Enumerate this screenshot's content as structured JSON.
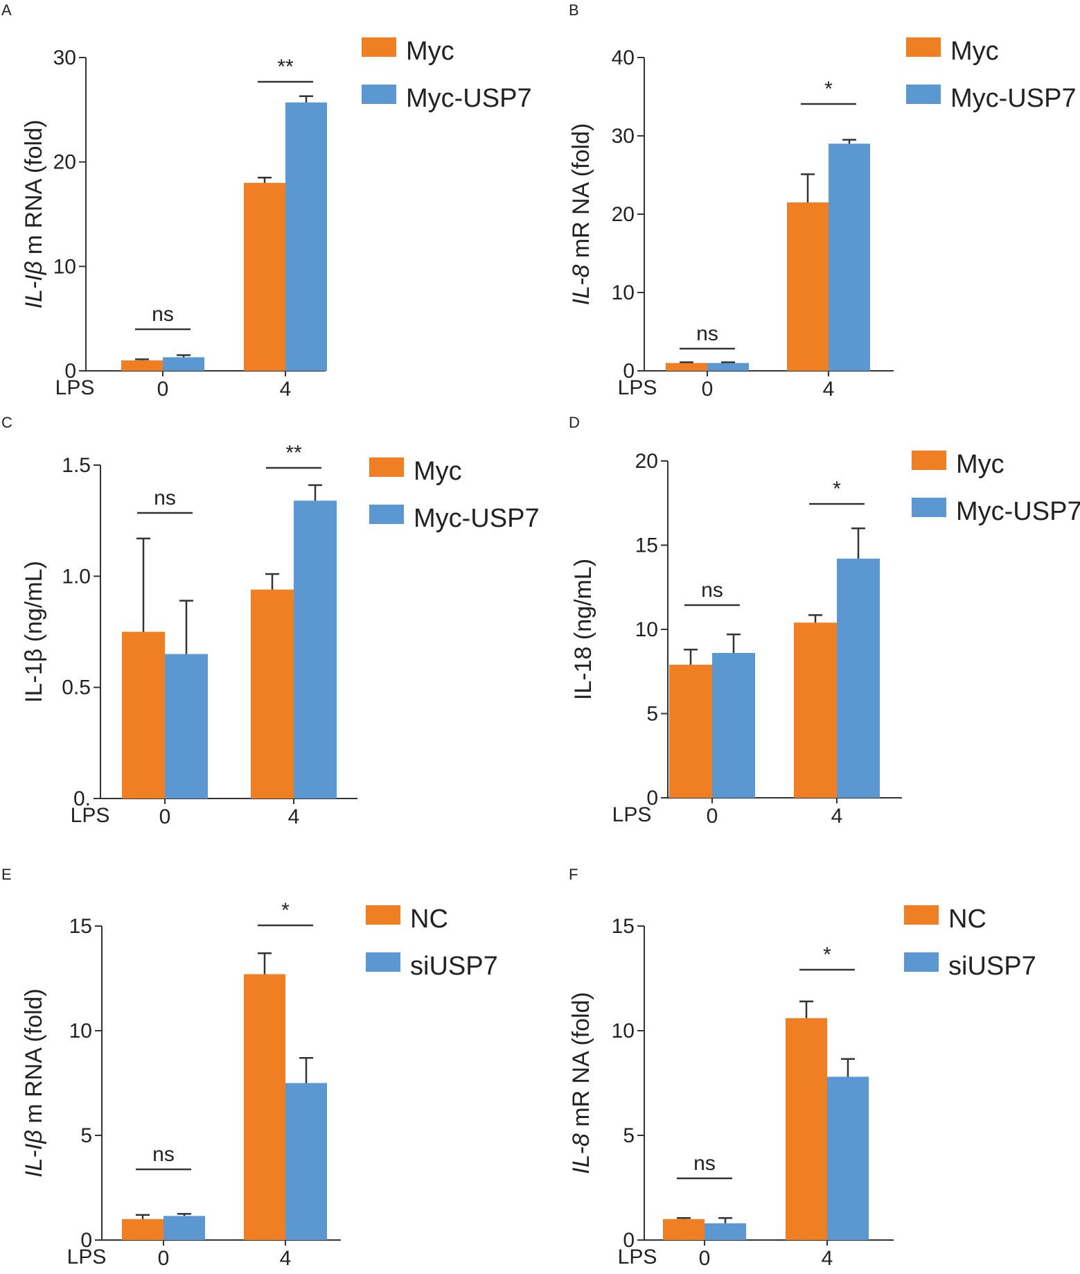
{
  "colors": {
    "orange": "#ef7f22",
    "blue": "#5b97d1"
  },
  "chart_data": [
    {
      "type": "bar",
      "panel": "A",
      "ylabel_italic": "IL-Iβ",
      "ylabel_rest": " m RNA (fold)",
      "x_title": "LPS",
      "categories": [
        "0",
        "4"
      ],
      "ylim": [
        0,
        30
      ],
      "yticks": [
        "0",
        "10",
        "20",
        "30"
      ],
      "series": [
        {
          "name": "Myc",
          "color": "orange",
          "values": [
            1,
            18
          ],
          "errors": [
            0.1,
            0.5
          ]
        },
        {
          "name": "Myc-USP7",
          "color": "blue",
          "values": [
            1.3,
            25.7
          ],
          "errors": [
            0.2,
            0.6
          ]
        }
      ],
      "significance": [
        "ns",
        "**"
      ]
    },
    {
      "type": "bar",
      "panel": "B",
      "ylabel_italic": "IL-8",
      "ylabel_rest": " mR NA (fold)",
      "x_title": "LPS",
      "categories": [
        "0",
        "4"
      ],
      "ylim": [
        0,
        40
      ],
      "yticks": [
        "0",
        "10",
        "20",
        "30",
        "40"
      ],
      "series": [
        {
          "name": "Myc",
          "color": "orange",
          "values": [
            1,
            21.5
          ],
          "errors": [
            0.1,
            3.6
          ]
        },
        {
          "name": "Myc-USP7",
          "color": "blue",
          "values": [
            1,
            29
          ],
          "errors": [
            0.1,
            0.5
          ]
        }
      ],
      "significance": [
        "ns",
        "*"
      ]
    },
    {
      "type": "bar",
      "panel": "C",
      "ylabel_italic": "",
      "ylabel_rest": "IL-1β (ng/mL)",
      "x_title": "LPS",
      "categories": [
        "0",
        "4"
      ],
      "ylim": [
        0,
        1.5
      ],
      "yticks": [
        "0.",
        "0.5",
        "1.0",
        "1.5"
      ],
      "series": [
        {
          "name": "Myc",
          "color": "orange",
          "values": [
            0.75,
            0.94
          ],
          "errors": [
            0.42,
            0.07
          ]
        },
        {
          "name": "Myc-USP7",
          "color": "blue",
          "values": [
            0.65,
            1.34
          ],
          "errors": [
            0.24,
            0.07
          ]
        }
      ],
      "significance": [
        "ns",
        "**"
      ]
    },
    {
      "type": "bar",
      "panel": "D",
      "ylabel_italic": "",
      "ylabel_rest": "IL-18 (ng/mL)",
      "x_title": "LPS",
      "categories": [
        "0",
        "4"
      ],
      "ylim": [
        0,
        20
      ],
      "yticks": [
        "0",
        "5",
        "10",
        "15",
        "20"
      ],
      "series": [
        {
          "name": "Myc",
          "color": "orange",
          "values": [
            7.9,
            10.4
          ],
          "errors": [
            0.9,
            0.45
          ]
        },
        {
          "name": "Myc-USP7",
          "color": "blue",
          "values": [
            8.6,
            14.2
          ],
          "errors": [
            1.1,
            1.8
          ]
        }
      ],
      "significance": [
        "ns",
        "*"
      ]
    },
    {
      "type": "bar",
      "panel": "E",
      "ylabel_italic": "IL-Iβ",
      "ylabel_rest": " m RNA (fold)",
      "x_title": "LPS",
      "categories": [
        "0",
        "4"
      ],
      "ylim": [
        0,
        15
      ],
      "yticks": [
        "0",
        "5",
        "10",
        "15"
      ],
      "series": [
        {
          "name": "NC",
          "color": "orange",
          "values": [
            1,
            12.7
          ],
          "errors": [
            0.2,
            1.0
          ]
        },
        {
          "name": "siUSP7",
          "color": "blue",
          "values": [
            1.15,
            7.5
          ],
          "errors": [
            0.1,
            1.2
          ]
        }
      ],
      "significance": [
        "ns",
        "*"
      ]
    },
    {
      "type": "bar",
      "panel": "F",
      "ylabel_italic": "IL-8",
      "ylabel_rest": " mR NA (fold)",
      "x_title": "LPS",
      "categories": [
        "0",
        "4"
      ],
      "ylim": [
        0,
        15
      ],
      "yticks": [
        "0",
        "5",
        "10",
        "15"
      ],
      "series": [
        {
          "name": "NC",
          "color": "orange",
          "values": [
            1,
            10.6
          ],
          "errors": [
            0.05,
            0.8
          ]
        },
        {
          "name": "siUSP7",
          "color": "blue",
          "values": [
            0.8,
            7.8
          ],
          "errors": [
            0.25,
            0.85
          ]
        }
      ],
      "significance": [
        "ns",
        "*"
      ]
    }
  ]
}
